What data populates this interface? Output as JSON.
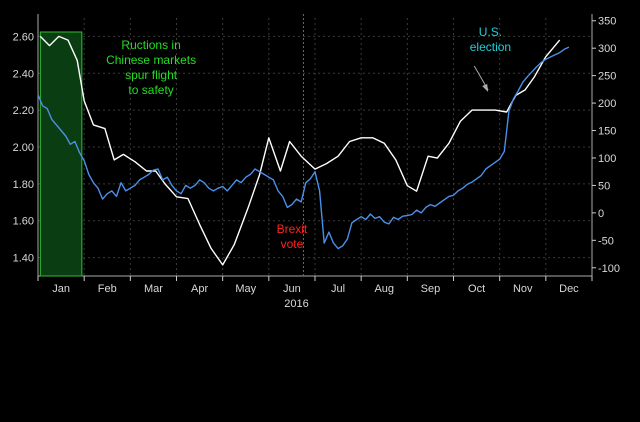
{
  "chart_data": {
    "type": "line",
    "title": "",
    "xlabel": "2016",
    "x_ticks": [
      "Jan",
      "Feb",
      "Mar",
      "Apr",
      "May",
      "Jun",
      "Jul",
      "Aug",
      "Sep",
      "Oct",
      "Nov",
      "Dec"
    ],
    "xlim": [
      0,
      12
    ],
    "left_axis": {
      "ticks": [
        "1.40",
        "1.60",
        "1.80",
        "2.00",
        "2.20",
        "2.40",
        "2.60"
      ],
      "ylim": [
        1.3,
        2.7
      ]
    },
    "right_axis": {
      "ticks": [
        "-100",
        "-50",
        "0",
        "50",
        "100",
        "150",
        "200",
        "250",
        "300",
        "350"
      ],
      "ylim": [
        -115,
        355
      ]
    },
    "grid": true,
    "series": [
      {
        "axis": "left",
        "color": "#ffffff",
        "x": [
          0.05,
          0.25,
          0.45,
          0.65,
          0.85,
          1.0,
          1.2,
          1.45,
          1.65,
          1.85,
          2.1,
          2.35,
          2.55,
          2.75,
          3.0,
          3.25,
          3.5,
          3.75,
          4.0,
          4.25,
          4.55,
          4.8,
          5.0,
          5.25,
          5.45,
          5.7,
          6.0,
          6.25,
          6.5,
          6.75,
          7.0,
          7.25,
          7.5,
          7.75,
          8.0,
          8.2,
          8.45,
          8.65,
          8.9,
          9.15,
          9.4,
          9.65,
          9.9,
          10.15,
          10.35,
          10.55,
          10.75,
          11.0,
          11.3
        ],
        "values": [
          2.6,
          2.55,
          2.6,
          2.58,
          2.47,
          2.25,
          2.12,
          2.1,
          1.93,
          1.96,
          1.92,
          1.87,
          1.87,
          1.8,
          1.73,
          1.72,
          1.58,
          1.45,
          1.36,
          1.47,
          1.67,
          1.85,
          2.05,
          1.87,
          2.03,
          1.95,
          1.88,
          1.91,
          1.95,
          2.03,
          2.05,
          2.05,
          2.02,
          1.93,
          1.79,
          1.76,
          1.95,
          1.94,
          2.02,
          2.14,
          2.2,
          2.2,
          2.2,
          2.19,
          2.28,
          2.31,
          2.38,
          2.49,
          2.58
        ]
      },
      {
        "axis": "right",
        "color": "#4a90e8",
        "x": [
          0.0,
          0.1,
          0.2,
          0.3,
          0.4,
          0.5,
          0.6,
          0.7,
          0.8,
          0.9,
          1.0,
          1.1,
          1.2,
          1.3,
          1.4,
          1.5,
          1.6,
          1.7,
          1.8,
          1.9,
          2.0,
          2.1,
          2.2,
          2.3,
          2.4,
          2.5,
          2.6,
          2.7,
          2.8,
          2.9,
          3.0,
          3.1,
          3.2,
          3.3,
          3.4,
          3.5,
          3.6,
          3.7,
          3.8,
          3.9,
          4.0,
          4.1,
          4.2,
          4.3,
          4.4,
          4.5,
          4.6,
          4.7,
          4.8,
          4.9,
          5.0,
          5.1,
          5.2,
          5.3,
          5.4,
          5.5,
          5.6,
          5.7,
          5.8,
          5.9,
          6.0,
          6.1,
          6.2,
          6.3,
          6.4,
          6.5,
          6.6,
          6.7,
          6.8,
          6.9,
          7.0,
          7.1,
          7.2,
          7.3,
          7.4,
          7.5,
          7.6,
          7.7,
          7.8,
          7.9,
          8.0,
          8.1,
          8.2,
          8.3,
          8.4,
          8.5,
          8.6,
          8.7,
          8.8,
          8.9,
          9.0,
          9.1,
          9.2,
          9.3,
          9.4,
          9.5,
          9.6,
          9.7,
          9.8,
          9.9,
          10.0,
          10.1,
          10.2,
          10.3,
          10.4,
          10.5,
          10.6,
          10.7,
          10.8,
          10.9,
          11.0,
          11.1,
          11.2,
          11.3,
          11.4,
          11.5
        ],
        "values": [
          215,
          195,
          190,
          170,
          160,
          150,
          140,
          125,
          130,
          110,
          95,
          70,
          55,
          45,
          25,
          35,
          40,
          30,
          55,
          40,
          45,
          50,
          60,
          65,
          70,
          78,
          80,
          60,
          65,
          50,
          40,
          35,
          50,
          45,
          50,
          60,
          55,
          45,
          40,
          45,
          48,
          40,
          50,
          60,
          55,
          65,
          70,
          80,
          75,
          70,
          65,
          60,
          40,
          30,
          10,
          15,
          25,
          20,
          55,
          62,
          75,
          40,
          -55,
          -35,
          -55,
          -65,
          -60,
          -48,
          -18,
          -12,
          -7,
          -12,
          -2,
          -10,
          -7,
          -17,
          -20,
          -8,
          -12,
          -6,
          -5,
          -3,
          5,
          0,
          10,
          15,
          12,
          18,
          24,
          30,
          32,
          40,
          45,
          52,
          56,
          62,
          68,
          80,
          86,
          92,
          98,
          112,
          185,
          208,
          222,
          238,
          248,
          257,
          266,
          274,
          280,
          284,
          288,
          292,
          298,
          302
        ]
      }
    ],
    "annotations": [
      {
        "text": "Ructions in\nChinese markets\nspur flight\nto safety",
        "color": "#22dd22"
      },
      {
        "text": "Brexit\nvote",
        "color": "#ff2222"
      },
      {
        "text": "U.S.\nelection",
        "color": "#1ecfd8"
      }
    ]
  }
}
